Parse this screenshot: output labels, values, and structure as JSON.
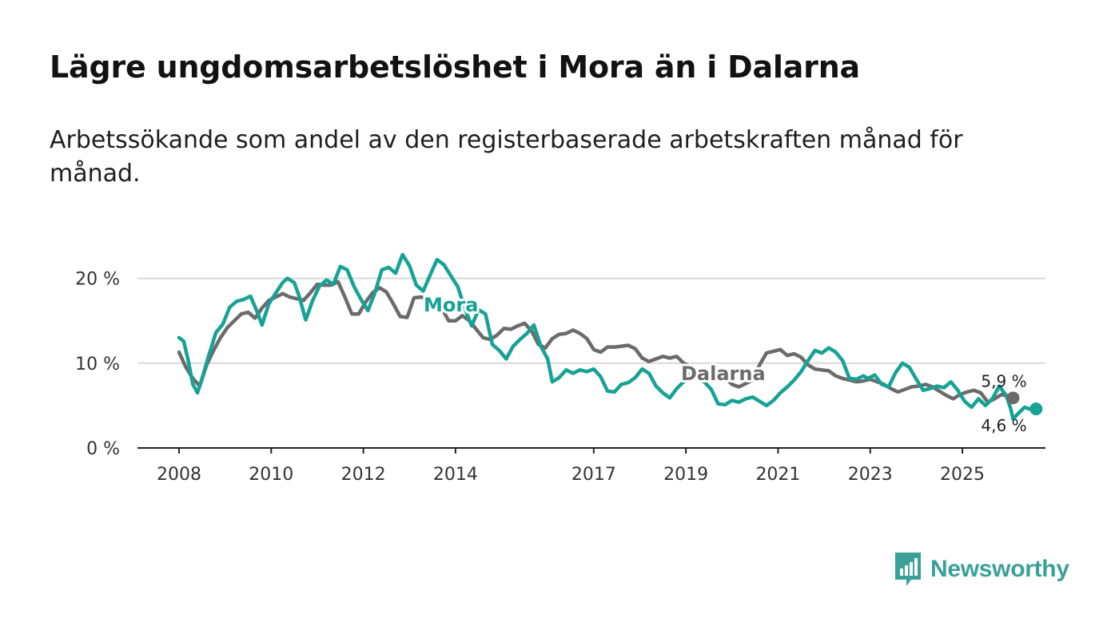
{
  "header": {
    "title": "Lägre ungdomsarbetslöshet i Mora än i Dalarna",
    "subtitle": "Arbetssökande som andel av den registerbaserade arbetskraften månad för månad."
  },
  "brand": {
    "name": "Newsworthy",
    "color": "#3aa199",
    "icon": "newsworthy-logo-icon"
  },
  "chart_data": {
    "type": "line",
    "title": "Lägre ungdomsarbetslöshet i Mora än i Dalarna",
    "subtitle": "Arbetssökande som andel av den registerbaserade arbetskraften månad för månad.",
    "xlabel": "",
    "ylabel": "",
    "x_ticks": [
      2008,
      2010,
      2012,
      2014,
      2017,
      2019,
      2021,
      2023,
      2025
    ],
    "y_ticks": [
      0,
      10,
      20
    ],
    "y_tick_labels": [
      "0 %",
      "10 %",
      "20 %"
    ],
    "xlim": [
      2007.2,
      2026.7
    ],
    "ylim": [
      0,
      22
    ],
    "grid": true,
    "series": [
      {
        "name": "Dalarna",
        "color": "#6e6a6c",
        "end_label": "5,9 %",
        "points": [
          [
            2008.0,
            11.3
          ],
          [
            2008.15,
            9.5
          ],
          [
            2008.3,
            8.2
          ],
          [
            2008.45,
            7.3
          ],
          [
            2008.6,
            9.8
          ],
          [
            2008.75,
            11.5
          ],
          [
            2008.9,
            13.0
          ],
          [
            2009.05,
            14.2
          ],
          [
            2009.2,
            15.0
          ],
          [
            2009.35,
            15.8
          ],
          [
            2009.5,
            16.0
          ],
          [
            2009.65,
            15.3
          ],
          [
            2009.8,
            16.5
          ],
          [
            2009.95,
            17.4
          ],
          [
            2010.1,
            17.8
          ],
          [
            2010.25,
            18.2
          ],
          [
            2010.4,
            17.8
          ],
          [
            2010.55,
            17.6
          ],
          [
            2010.7,
            17.4
          ],
          [
            2010.85,
            18.3
          ],
          [
            2011.0,
            19.3
          ],
          [
            2011.15,
            19.2
          ],
          [
            2011.3,
            19.2
          ],
          [
            2011.45,
            19.6
          ],
          [
            2011.6,
            17.8
          ],
          [
            2011.75,
            15.8
          ],
          [
            2011.9,
            15.8
          ],
          [
            2012.05,
            17.2
          ],
          [
            2012.2,
            18.3
          ],
          [
            2012.35,
            18.9
          ],
          [
            2012.5,
            18.4
          ],
          [
            2012.65,
            17.0
          ],
          [
            2012.8,
            15.5
          ],
          [
            2012.95,
            15.4
          ],
          [
            2013.1,
            17.7
          ],
          [
            2013.25,
            17.8
          ],
          [
            2013.4,
            17.6
          ],
          [
            2013.55,
            17.2
          ],
          [
            2013.7,
            16.5
          ],
          [
            2013.85,
            15.0
          ],
          [
            2014.0,
            15.0
          ],
          [
            2014.15,
            15.6
          ],
          [
            2014.3,
            15.0
          ],
          [
            2014.45,
            14.0
          ],
          [
            2014.6,
            13.0
          ],
          [
            2014.75,
            12.8
          ],
          [
            2014.9,
            13.3
          ],
          [
            2015.05,
            14.1
          ],
          [
            2015.2,
            14.0
          ],
          [
            2015.35,
            14.4
          ],
          [
            2015.5,
            14.7
          ],
          [
            2015.65,
            13.8
          ],
          [
            2015.8,
            12.2
          ],
          [
            2015.95,
            11.8
          ],
          [
            2016.1,
            12.9
          ],
          [
            2016.25,
            13.4
          ],
          [
            2016.4,
            13.5
          ],
          [
            2016.55,
            13.9
          ],
          [
            2016.7,
            13.5
          ],
          [
            2016.85,
            12.9
          ],
          [
            2017.0,
            11.6
          ],
          [
            2017.15,
            11.3
          ],
          [
            2017.3,
            11.9
          ],
          [
            2017.45,
            11.9
          ],
          [
            2017.6,
            12.0
          ],
          [
            2017.75,
            12.1
          ],
          [
            2017.9,
            11.7
          ],
          [
            2018.05,
            10.6
          ],
          [
            2018.2,
            10.2
          ],
          [
            2018.35,
            10.5
          ],
          [
            2018.5,
            10.8
          ],
          [
            2018.65,
            10.6
          ],
          [
            2018.8,
            10.8
          ],
          [
            2018.95,
            10.0
          ],
          [
            2019.1,
            9.6
          ],
          [
            2019.25,
            8.4
          ],
          [
            2019.4,
            8.2
          ],
          [
            2019.55,
            8.5
          ],
          [
            2019.7,
            8.5
          ],
          [
            2019.85,
            8.3
          ],
          [
            2020.0,
            7.5
          ],
          [
            2020.15,
            7.2
          ],
          [
            2020.3,
            7.6
          ],
          [
            2020.45,
            8.0
          ],
          [
            2020.6,
            9.8
          ],
          [
            2020.75,
            11.2
          ],
          [
            2020.9,
            11.4
          ],
          [
            2021.05,
            11.6
          ],
          [
            2021.2,
            10.9
          ],
          [
            2021.35,
            11.1
          ],
          [
            2021.5,
            10.7
          ],
          [
            2021.65,
            9.8
          ],
          [
            2021.8,
            9.3
          ],
          [
            2021.95,
            9.2
          ],
          [
            2022.1,
            9.1
          ],
          [
            2022.25,
            8.5
          ],
          [
            2022.4,
            8.2
          ],
          [
            2022.55,
            8.0
          ],
          [
            2022.7,
            7.8
          ],
          [
            2022.85,
            7.9
          ],
          [
            2023.0,
            8.1
          ],
          [
            2023.15,
            7.8
          ],
          [
            2023.3,
            7.5
          ],
          [
            2023.45,
            7.0
          ],
          [
            2023.6,
            6.6
          ],
          [
            2023.75,
            6.9
          ],
          [
            2023.9,
            7.2
          ],
          [
            2024.05,
            7.3
          ],
          [
            2024.2,
            7.5
          ],
          [
            2024.35,
            7.2
          ],
          [
            2024.5,
            6.7
          ],
          [
            2024.65,
            6.2
          ],
          [
            2024.8,
            5.8
          ],
          [
            2024.95,
            6.3
          ],
          [
            2025.1,
            6.6
          ],
          [
            2025.25,
            6.8
          ],
          [
            2025.4,
            6.5
          ],
          [
            2025.55,
            5.4
          ],
          [
            2025.7,
            5.8
          ],
          [
            2025.85,
            6.3
          ],
          [
            2026.0,
            6.1
          ],
          [
            2026.1,
            5.9
          ]
        ]
      },
      {
        "name": "Mora",
        "color": "#16a295",
        "end_label": "4,6 %",
        "points": [
          [
            2008.0,
            13.0
          ],
          [
            2008.1,
            12.6
          ],
          [
            2008.2,
            10.3
          ],
          [
            2008.3,
            7.5
          ],
          [
            2008.4,
            6.5
          ],
          [
            2008.5,
            8.2
          ],
          [
            2008.65,
            11.0
          ],
          [
            2008.8,
            13.6
          ],
          [
            2008.95,
            14.6
          ],
          [
            2009.1,
            16.6
          ],
          [
            2009.25,
            17.3
          ],
          [
            2009.4,
            17.5
          ],
          [
            2009.55,
            17.9
          ],
          [
            2009.7,
            16.0
          ],
          [
            2009.8,
            14.5
          ],
          [
            2009.95,
            17.0
          ],
          [
            2010.1,
            18.3
          ],
          [
            2010.25,
            19.5
          ],
          [
            2010.35,
            20.0
          ],
          [
            2010.5,
            19.5
          ],
          [
            2010.6,
            18.0
          ],
          [
            2010.75,
            15.1
          ],
          [
            2010.9,
            17.4
          ],
          [
            2011.05,
            19.1
          ],
          [
            2011.2,
            19.8
          ],
          [
            2011.35,
            19.3
          ],
          [
            2011.5,
            21.4
          ],
          [
            2011.65,
            21.0
          ],
          [
            2011.8,
            19.0
          ],
          [
            2011.95,
            17.5
          ],
          [
            2012.1,
            16.2
          ],
          [
            2012.25,
            18.3
          ],
          [
            2012.4,
            21.0
          ],
          [
            2012.55,
            21.3
          ],
          [
            2012.7,
            20.6
          ],
          [
            2012.85,
            22.8
          ],
          [
            2013.0,
            21.5
          ],
          [
            2013.15,
            19.2
          ],
          [
            2013.3,
            18.5
          ],
          [
            2013.45,
            20.4
          ],
          [
            2013.6,
            22.2
          ],
          [
            2013.75,
            21.6
          ],
          [
            2013.9,
            20.3
          ],
          [
            2014.05,
            19.0
          ],
          [
            2014.2,
            16.5
          ],
          [
            2014.35,
            14.4
          ],
          [
            2014.5,
            16.3
          ],
          [
            2014.65,
            15.8
          ],
          [
            2014.8,
            12.2
          ],
          [
            2014.95,
            11.5
          ],
          [
            2015.1,
            10.5
          ],
          [
            2015.25,
            12.0
          ],
          [
            2015.4,
            12.8
          ],
          [
            2015.55,
            13.5
          ],
          [
            2015.7,
            14.5
          ],
          [
            2015.85,
            12.0
          ],
          [
            2016.0,
            10.5
          ],
          [
            2016.1,
            7.8
          ],
          [
            2016.25,
            8.3
          ],
          [
            2016.4,
            9.2
          ],
          [
            2016.55,
            8.8
          ],
          [
            2016.7,
            9.2
          ],
          [
            2016.85,
            9.0
          ],
          [
            2017.0,
            9.3
          ],
          [
            2017.15,
            8.4
          ],
          [
            2017.3,
            6.7
          ],
          [
            2017.45,
            6.6
          ],
          [
            2017.6,
            7.5
          ],
          [
            2017.75,
            7.7
          ],
          [
            2017.9,
            8.3
          ],
          [
            2018.05,
            9.3
          ],
          [
            2018.2,
            8.8
          ],
          [
            2018.35,
            7.3
          ],
          [
            2018.5,
            6.5
          ],
          [
            2018.65,
            5.9
          ],
          [
            2018.8,
            7.0
          ],
          [
            2018.95,
            7.8
          ],
          [
            2019.1,
            8.7
          ],
          [
            2019.25,
            8.2
          ],
          [
            2019.4,
            7.8
          ],
          [
            2019.55,
            6.9
          ],
          [
            2019.7,
            5.2
          ],
          [
            2019.85,
            5.1
          ],
          [
            2020.0,
            5.6
          ],
          [
            2020.15,
            5.4
          ],
          [
            2020.3,
            5.8
          ],
          [
            2020.45,
            6.0
          ],
          [
            2020.6,
            5.5
          ],
          [
            2020.75,
            5.0
          ],
          [
            2020.9,
            5.6
          ],
          [
            2021.05,
            6.5
          ],
          [
            2021.2,
            7.2
          ],
          [
            2021.35,
            8.0
          ],
          [
            2021.5,
            9.0
          ],
          [
            2021.65,
            10.3
          ],
          [
            2021.8,
            11.5
          ],
          [
            2021.95,
            11.2
          ],
          [
            2022.1,
            11.8
          ],
          [
            2022.25,
            11.3
          ],
          [
            2022.4,
            10.3
          ],
          [
            2022.55,
            8.2
          ],
          [
            2022.7,
            8.1
          ],
          [
            2022.85,
            8.5
          ],
          [
            2022.95,
            8.2
          ],
          [
            2023.1,
            8.6
          ],
          [
            2023.25,
            7.5
          ],
          [
            2023.4,
            7.2
          ],
          [
            2023.55,
            8.9
          ],
          [
            2023.7,
            10.0
          ],
          [
            2023.85,
            9.5
          ],
          [
            2024.0,
            8.1
          ],
          [
            2024.15,
            6.8
          ],
          [
            2024.3,
            7.0
          ],
          [
            2024.45,
            7.3
          ],
          [
            2024.6,
            7.1
          ],
          [
            2024.75,
            7.8
          ],
          [
            2024.9,
            6.8
          ],
          [
            2025.05,
            5.5
          ],
          [
            2025.2,
            4.8
          ],
          [
            2025.35,
            5.8
          ],
          [
            2025.5,
            5.0
          ],
          [
            2025.65,
            5.8
          ],
          [
            2025.8,
            7.3
          ],
          [
            2025.95,
            6.2
          ],
          [
            2026.05,
            4.6
          ],
          [
            2026.1,
            3.4
          ],
          [
            2026.2,
            4.0
          ],
          [
            2026.35,
            4.8
          ],
          [
            2026.45,
            4.6
          ],
          [
            2026.55,
            4.7
          ],
          [
            2026.6,
            4.6
          ]
        ]
      }
    ]
  }
}
